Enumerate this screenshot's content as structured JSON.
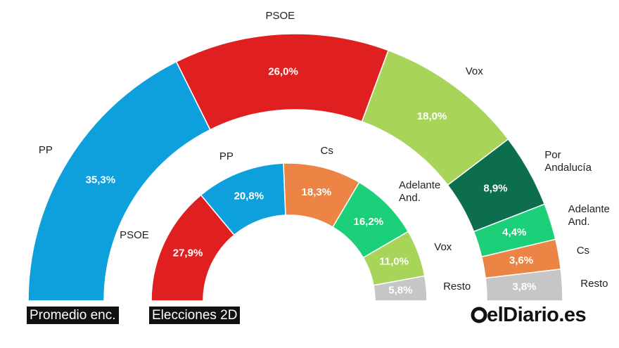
{
  "chart_data": [
    {
      "type": "half-donut",
      "title": "Promedio enc.",
      "categories": [
        "PP",
        "PSOE",
        "Vox",
        "Por Andalucía",
        "Adelante And.",
        "Cs",
        "Resto"
      ],
      "values": [
        35.3,
        26.0,
        18.0,
        8.9,
        4.4,
        3.6,
        3.8
      ],
      "value_labels": [
        "35,3%",
        "26,0%",
        "18,0%",
        "8,9%",
        "4,4%",
        "3,6%",
        "3,8%"
      ],
      "colors": [
        "#0ea0dc",
        "#e02020",
        "#a8d45a",
        "#0d6e4e",
        "#1ccf79",
        "#ec8445",
        "#c6c6c6"
      ]
    },
    {
      "type": "half-donut",
      "title": "Elecciones 2D",
      "categories": [
        "PSOE",
        "PP",
        "Cs",
        "Adelante And.",
        "Vox",
        "Resto"
      ],
      "values": [
        27.9,
        20.8,
        18.3,
        16.2,
        11.0,
        5.8
      ],
      "value_labels": [
        "27,9%",
        "20,8%",
        "18,3%",
        "16,2%",
        "11,0%",
        "5,8%"
      ],
      "colors": [
        "#e02020",
        "#0ea0dc",
        "#ec8445",
        "#1ccf79",
        "#a8d45a",
        "#c6c6c6"
      ]
    }
  ],
  "brand": "elDiario.es"
}
